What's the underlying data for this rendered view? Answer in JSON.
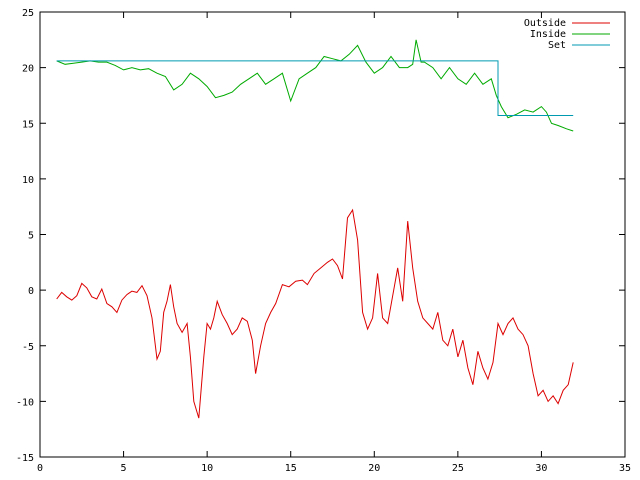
{
  "chart_data": {
    "type": "line",
    "xlim": [
      0,
      35
    ],
    "ylim": [
      -15,
      25
    ],
    "x_ticks": [
      0,
      5,
      10,
      15,
      20,
      25,
      30,
      35
    ],
    "y_ticks": [
      -15,
      -10,
      -5,
      0,
      5,
      10,
      15,
      20,
      25
    ],
    "grid": false,
    "legend_placement": "top-right",
    "series": [
      {
        "name": "Outside",
        "color": "#dd0000",
        "x": [
          1.0,
          1.3,
          1.6,
          1.9,
          2.2,
          2.5,
          2.8,
          3.1,
          3.4,
          3.7,
          4.0,
          4.3,
          4.6,
          4.9,
          5.2,
          5.5,
          5.8,
          6.1,
          6.4,
          6.7,
          7.0,
          7.2,
          7.4,
          7.6,
          7.8,
          8.0,
          8.2,
          8.5,
          8.8,
          9.0,
          9.2,
          9.5,
          9.8,
          10.0,
          10.2,
          10.4,
          10.6,
          10.9,
          11.2,
          11.5,
          11.8,
          12.1,
          12.4,
          12.7,
          12.9,
          13.2,
          13.5,
          13.8,
          14.1,
          14.5,
          14.9,
          15.3,
          15.7,
          16.0,
          16.4,
          16.8,
          17.2,
          17.5,
          17.8,
          18.1,
          18.4,
          18.7,
          19.0,
          19.3,
          19.6,
          19.9,
          20.2,
          20.5,
          20.8,
          21.1,
          21.4,
          21.7,
          22.0,
          22.3,
          22.6,
          22.9,
          23.2,
          23.5,
          23.8,
          24.1,
          24.4,
          24.7,
          25.0,
          25.3,
          25.6,
          25.9,
          26.2,
          26.5,
          26.8,
          27.1,
          27.4,
          27.7,
          28.0,
          28.3,
          28.6,
          28.9,
          29.2,
          29.5,
          29.8,
          30.1,
          30.4,
          30.7,
          31.0,
          31.3,
          31.6,
          31.9
        ],
        "values": [
          -0.8,
          -0.2,
          -0.6,
          -0.9,
          -0.5,
          0.6,
          0.2,
          -0.6,
          -0.8,
          0.1,
          -1.2,
          -1.5,
          -2.0,
          -0.9,
          -0.4,
          -0.1,
          -0.2,
          0.4,
          -0.5,
          -2.5,
          -6.2,
          -5.5,
          -2.0,
          -1.0,
          0.5,
          -1.5,
          -3.0,
          -3.8,
          -3.0,
          -6.0,
          -10.0,
          -11.5,
          -6.0,
          -3.0,
          -3.5,
          -2.5,
          -1.0,
          -2.2,
          -3.0,
          -4.0,
          -3.5,
          -2.5,
          -2.8,
          -4.5,
          -7.5,
          -5.0,
          -3.0,
          -2.0,
          -1.2,
          0.5,
          0.3,
          0.8,
          0.9,
          0.5,
          1.5,
          2.0,
          2.5,
          2.8,
          2.2,
          1.0,
          6.5,
          7.2,
          4.5,
          -2.0,
          -3.5,
          -2.5,
          1.5,
          -2.5,
          -3.0,
          -0.5,
          2.0,
          -1.0,
          6.2,
          2.0,
          -1.0,
          -2.5,
          -3.0,
          -3.5,
          -2.0,
          -4.5,
          -5.0,
          -3.5,
          -6.0,
          -4.5,
          -7.0,
          -8.5,
          -5.5,
          -7.0,
          -8.0,
          -6.5,
          -3.0,
          -4.0,
          -3.0,
          -2.5,
          -3.5,
          -4.0,
          -5.0,
          -7.5,
          -9.5,
          -9.0,
          -10.0,
          -9.5,
          -10.2,
          -9.0,
          -8.5,
          -6.5
        ]
      },
      {
        "name": "Inside",
        "color": "#00aa00",
        "x": [
          1.0,
          1.5,
          2.0,
          2.5,
          3.0,
          3.5,
          4.0,
          4.5,
          5.0,
          5.5,
          6.0,
          6.5,
          7.0,
          7.5,
          8.0,
          8.5,
          9.0,
          9.5,
          10.0,
          10.5,
          11.0,
          11.5,
          12.0,
          12.5,
          13.0,
          13.5,
          14.0,
          14.5,
          15.0,
          15.5,
          16.0,
          16.5,
          17.0,
          17.5,
          18.0,
          18.5,
          19.0,
          19.5,
          20.0,
          20.5,
          21.0,
          21.5,
          22.0,
          22.3,
          22.5,
          22.8,
          23.0,
          23.5,
          24.0,
          24.5,
          25.0,
          25.5,
          26.0,
          26.5,
          27.0,
          27.3,
          27.6,
          28.0,
          28.5,
          29.0,
          29.5,
          30.0,
          30.3,
          30.6,
          31.0,
          31.5,
          31.9
        ],
        "values": [
          20.6,
          20.3,
          20.4,
          20.5,
          20.6,
          20.5,
          20.5,
          20.2,
          19.8,
          20.0,
          19.8,
          19.9,
          19.5,
          19.2,
          18.0,
          18.5,
          19.5,
          19.0,
          18.3,
          17.3,
          17.5,
          17.8,
          18.5,
          19.0,
          19.5,
          18.5,
          19.0,
          19.5,
          17.0,
          19.0,
          19.5,
          20.0,
          21.0,
          20.8,
          20.6,
          21.2,
          22.0,
          20.5,
          19.5,
          20.0,
          21.0,
          20.0,
          20.0,
          20.3,
          22.5,
          20.5,
          20.5,
          20.0,
          19.0,
          20.0,
          19.0,
          18.5,
          19.5,
          18.5,
          19.0,
          17.5,
          16.5,
          15.5,
          15.8,
          16.2,
          16.0,
          16.5,
          16.0,
          15.0,
          14.8,
          14.5,
          14.3
        ]
      },
      {
        "name": "Set",
        "color": "#009ab0",
        "x": [
          1.0,
          27.4,
          27.4,
          31.9
        ],
        "values": [
          20.6,
          20.6,
          15.7,
          15.7
        ]
      }
    ]
  }
}
